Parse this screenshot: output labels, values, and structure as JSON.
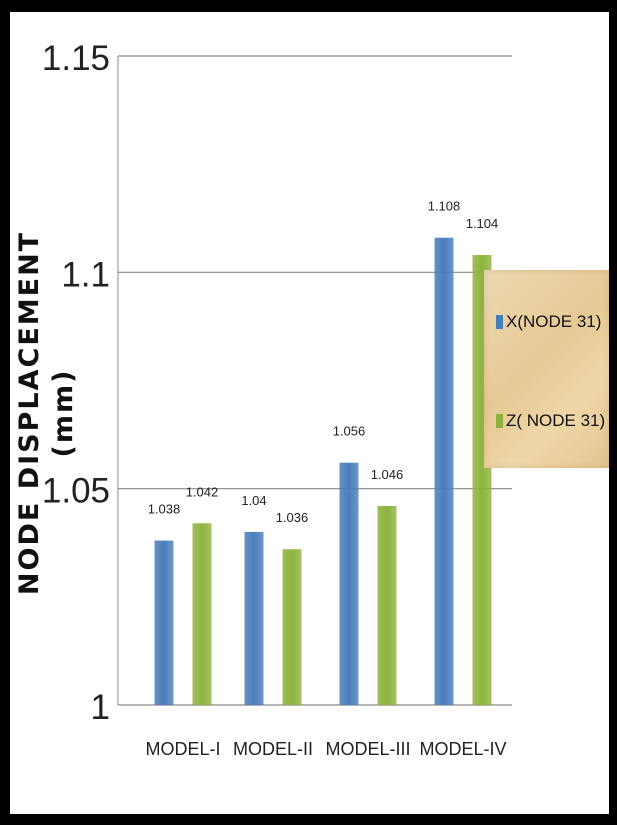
{
  "chart_data": {
    "type": "bar",
    "categories": [
      "MODEL-I",
      "MODEL-II",
      "MODEL-III",
      "MODEL-IV"
    ],
    "series": [
      {
        "name": "X(NODE 31)",
        "color": "#4a7ebb",
        "values": [
          1.038,
          1.04,
          1.056,
          1.108
        ],
        "labels": [
          "1.038",
          "1.04",
          "1.056",
          "1.108"
        ]
      },
      {
        "name": "Z( NODE 31)",
        "color": "#8db33f",
        "values": [
          1.042,
          1.036,
          1.046,
          1.104
        ],
        "labels": [
          "1.042",
          "1.036",
          "1.046",
          "1.104"
        ]
      }
    ],
    "ylabel_line1": "NODE DISPLACEMENT",
    "ylabel_line2": "(mm)",
    "ylim": [
      1,
      1.15
    ],
    "yticks": [
      1,
      1.05,
      1.1,
      1.15
    ],
    "ytick_labels": [
      "1",
      "1.05",
      "1.1",
      "1.15"
    ],
    "grid": true,
    "legend_position": "right"
  }
}
